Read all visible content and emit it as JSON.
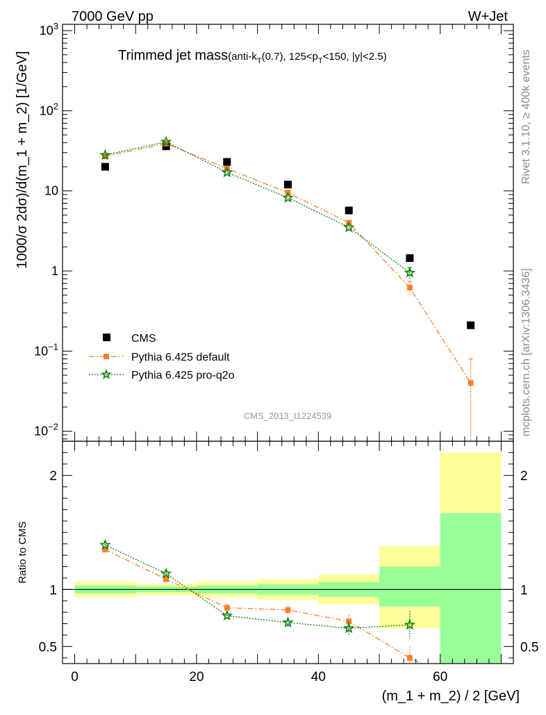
{
  "header": {
    "left": "7000 GeV pp",
    "right": "W+Jet"
  },
  "plot_title": {
    "main": "Trimmed jet mass",
    "sub_a": "(anti-k",
    "sub_a_sub": "T",
    "sub_b": "(0.7), 125<p",
    "sub_b_sub": "T",
    "sub_c": "<150, |y|<2.5)"
  },
  "side_labels": {
    "rivet": "Rivet 3.1.10, ≥ 400k events",
    "mcplots": "mcplots.cern.ch [arXiv:1306.3436]"
  },
  "analysis_id": "CMS_2013_I1224539",
  "chart_data": [
    {
      "type": "scatter",
      "panel": "main",
      "scale": "log",
      "ylabel": "1000/σ 2dσ)/d(m_1 + m_2) [1/GeV]",
      "ylim": [
        0.0075,
        1200
      ],
      "xlim": [
        -2,
        72
      ],
      "y_ticks": [
        {
          "value": 0.01,
          "mant": "10",
          "exp": "−2"
        },
        {
          "value": 0.1,
          "mant": "10",
          "exp": "−1"
        },
        {
          "value": 1,
          "mant": "1",
          "exp": ""
        },
        {
          "value": 10,
          "mant": "10",
          "exp": ""
        },
        {
          "value": 100,
          "mant": "10",
          "exp": "2"
        },
        {
          "value": 1000,
          "mant": "10",
          "exp": "3"
        }
      ],
      "legend_position": "bottom-left",
      "series": [
        {
          "name": "CMS",
          "color": "#000000",
          "marker": "square",
          "x": [
            5,
            15,
            25,
            35,
            45,
            55,
            65
          ],
          "y": [
            20,
            36,
            23,
            12,
            5.7,
            1.45,
            0.21
          ]
        },
        {
          "name": "Pythia 6.425 default",
          "color": "#ff7f27",
          "marker": "square",
          "line": "dashdot",
          "x": [
            5,
            15,
            25,
            35,
            45,
            55,
            65
          ],
          "y": [
            27,
            39,
            19,
            9.5,
            4.0,
            0.62,
            0.04
          ],
          "err_hi": [
            0,
            0,
            0,
            0,
            0,
            0.12,
            0.04
          ],
          "err_lo": [
            0,
            0,
            0,
            0,
            0,
            0.12,
            0.04
          ]
        },
        {
          "name": "Pythia 6.425 pro-q2o",
          "color": "#0a7a0a",
          "marker": "star",
          "line": "dotted",
          "x": [
            5,
            15,
            25,
            35,
            45,
            55
          ],
          "y": [
            28,
            41,
            17,
            8.2,
            3.5,
            0.95
          ],
          "err_hi": [
            0,
            0,
            0,
            0,
            0,
            0.15
          ],
          "err_lo": [
            0,
            0,
            0,
            0,
            0,
            0.15
          ]
        }
      ]
    },
    {
      "type": "scatter",
      "panel": "ratio",
      "ylabel": "Ratio to CMS",
      "xlabel": "(m_1 + m_2) / 2 [GeV]",
      "ylim": [
        0.35,
        2.3
      ],
      "xlim": [
        -2,
        72
      ],
      "x_ticks": [
        0,
        20,
        40,
        60
      ],
      "y_ticks": [
        0.5,
        1,
        2
      ],
      "reference_line": 1,
      "bands": [
        {
          "x0": 0,
          "x1": 10,
          "yellow": [
            0.93,
            1.07
          ],
          "green": [
            0.965,
            1.035
          ]
        },
        {
          "x0": 10,
          "x1": 20,
          "yellow": [
            0.95,
            1.05
          ],
          "green": [
            0.975,
            1.025
          ]
        },
        {
          "x0": 20,
          "x1": 30,
          "yellow": [
            0.93,
            1.07
          ],
          "green": [
            0.965,
            1.035
          ]
        },
        {
          "x0": 30,
          "x1": 40,
          "yellow": [
            0.91,
            1.09
          ],
          "green": [
            0.955,
            1.045
          ]
        },
        {
          "x0": 40,
          "x1": 50,
          "yellow": [
            0.87,
            1.13
          ],
          "green": [
            0.935,
            1.065
          ]
        },
        {
          "x0": 50,
          "x1": 60,
          "yellow": [
            0.66,
            1.38
          ],
          "green": [
            0.85,
            1.2
          ]
        },
        {
          "x0": 60,
          "x1": 70,
          "yellow": [
            0.35,
            2.2
          ],
          "green": [
            0.35,
            1.67
          ]
        }
      ],
      "series": [
        {
          "name": "Pythia 6.425 default",
          "color": "#ff7f27",
          "marker": "square",
          "line": "dashdot",
          "x": [
            5,
            15,
            25,
            35,
            45,
            55
          ],
          "y": [
            1.35,
            1.09,
            0.84,
            0.82,
            0.72,
            0.4
          ],
          "err": [
            0.03,
            0.02,
            0.03,
            0.04,
            0.06,
            0.1
          ],
          "tail_to": [
            57,
            0.35
          ]
        },
        {
          "name": "Pythia 6.425 pro-q2o",
          "color": "#0a7a0a",
          "marker": "star",
          "line": "dotted",
          "x": [
            5,
            15,
            25,
            35,
            45,
            55
          ],
          "y": [
            1.39,
            1.14,
            0.77,
            0.71,
            0.66,
            0.69
          ],
          "err": [
            0.03,
            0.02,
            0.03,
            0.04,
            0.06,
            0.12
          ]
        }
      ]
    }
  ]
}
